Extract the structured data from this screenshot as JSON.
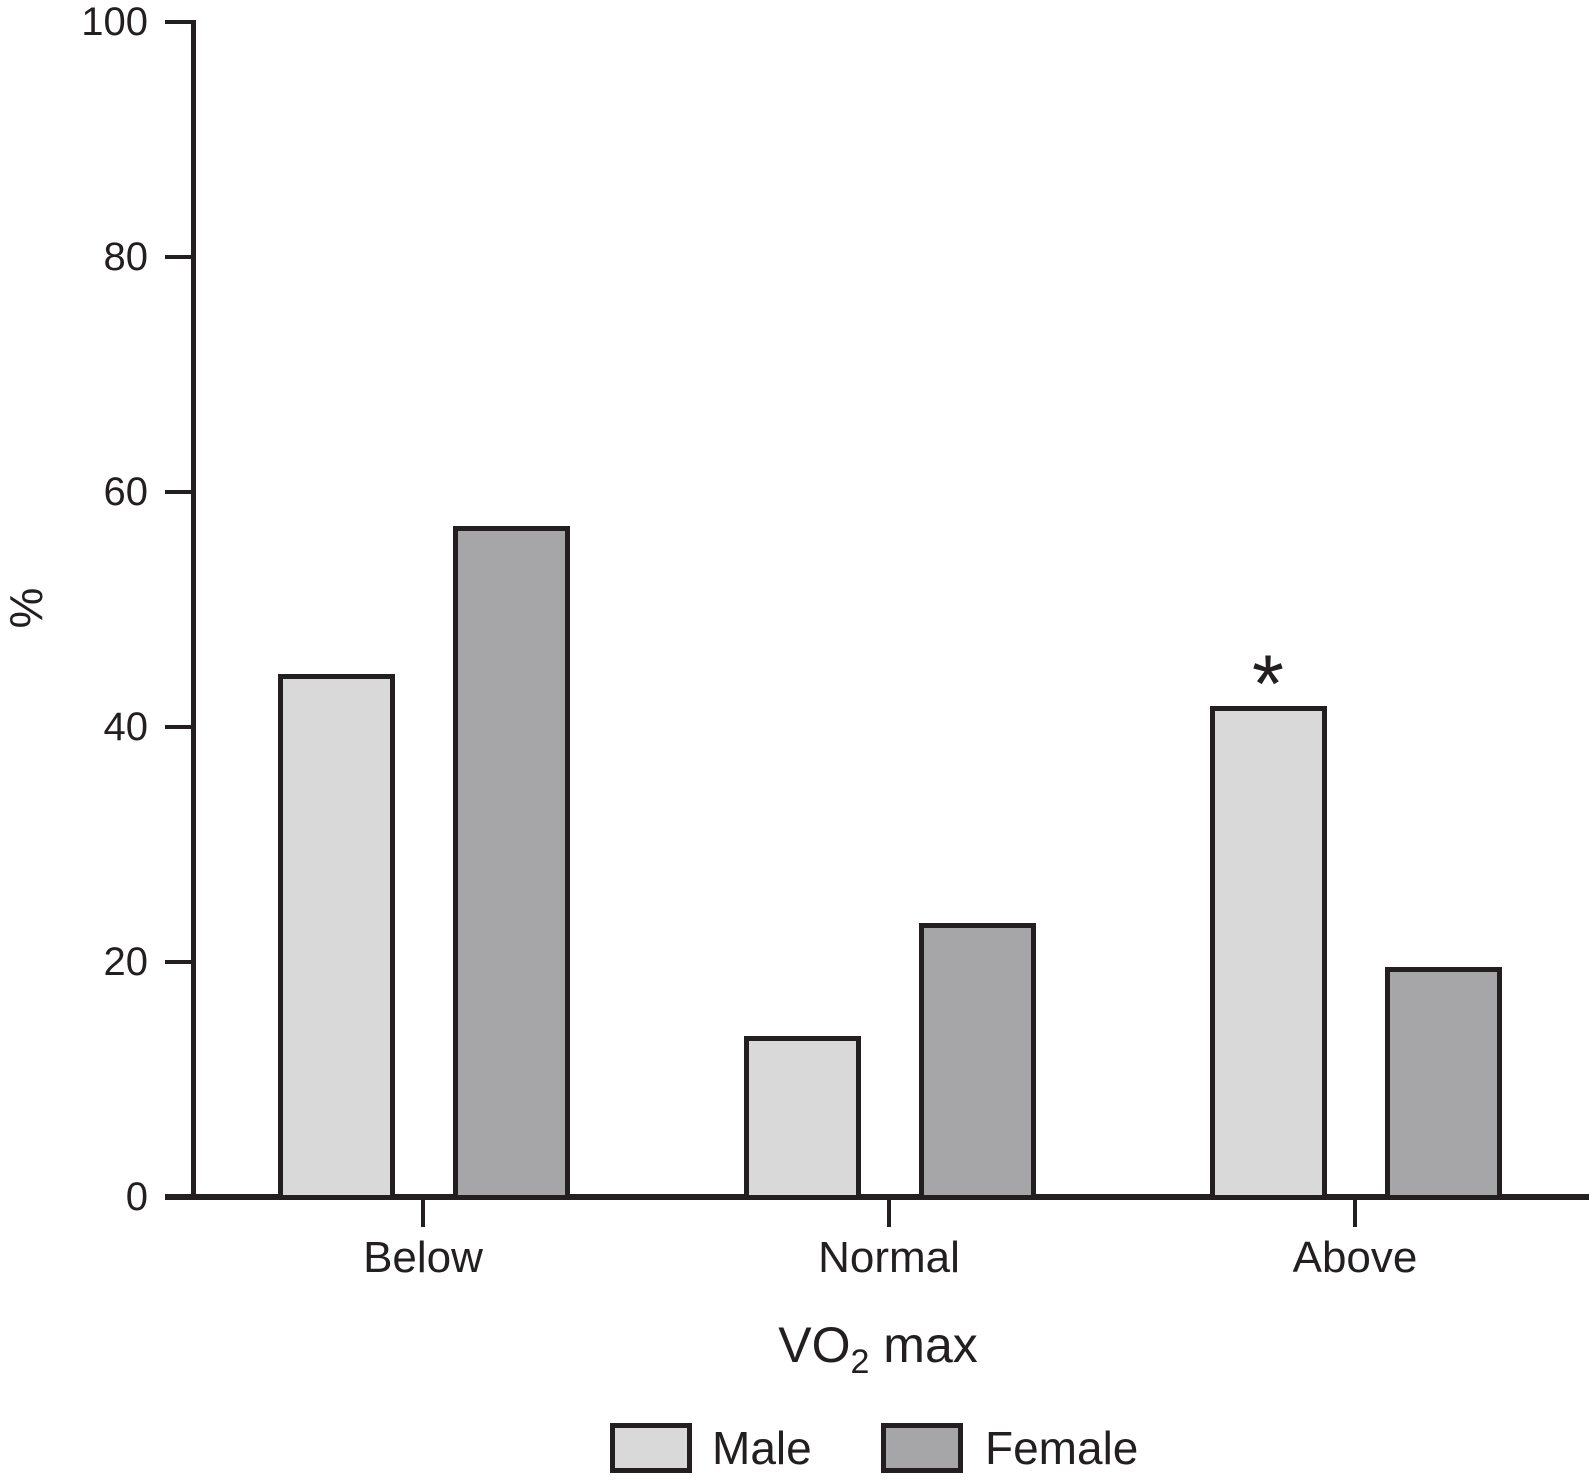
{
  "chart_data": {
    "type": "bar",
    "title": "",
    "categories": [
      "Below",
      "Normal",
      "Above"
    ],
    "series": [
      {
        "name": "Male",
        "color": "#d9d9d9",
        "values": [
          44.5,
          13.7,
          41.8
        ]
      },
      {
        "name": "Female",
        "color": "#a6a6a8",
        "values": [
          57.1,
          23.3,
          19.6
        ]
      }
    ],
    "xlabel": {
      "text": "VO2 max",
      "pre": "VO",
      "sub": "2",
      "post": " max"
    },
    "ylabel": "%",
    "ylim": [
      0,
      100
    ],
    "yticks": [
      0,
      20,
      40,
      60,
      80,
      100
    ],
    "grid": false,
    "legend_position": "bottom",
    "annotations": [
      {
        "text": "*",
        "category": "Above",
        "series": "Male"
      }
    ],
    "axis_color": "#231f20",
    "bar_border_color": "#231f20"
  }
}
